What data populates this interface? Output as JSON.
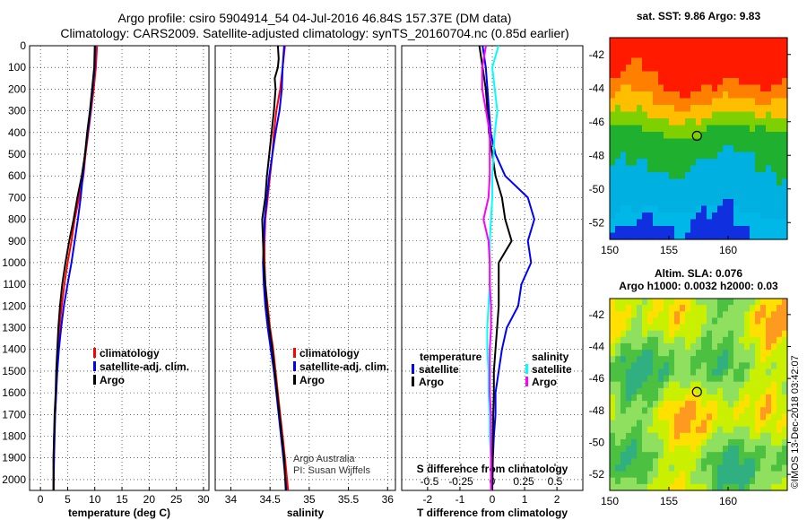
{
  "chart_data": {
    "type": "line",
    "title_line1": "Argo profile: csiro 5904914_54 04-Jul-2016 46.84S 157.37E (DM data)",
    "title_line2": "Climatology: CARS2009. Satellite-adjusted climatology: synTS_20160704.nc (0.85d earlier)",
    "depth_axis": {
      "label": "",
      "ticks": [
        0,
        100,
        200,
        300,
        400,
        500,
        600,
        700,
        800,
        900,
        1000,
        1100,
        1200,
        1300,
        1400,
        1500,
        1600,
        1700,
        1800,
        1900,
        2000
      ],
      "ylim": [
        0,
        2050
      ],
      "inverted": true
    },
    "panels": [
      {
        "name": "temperature",
        "xlabel": "temperature (deg C)",
        "xlim": [
          -2,
          31
        ],
        "xticks": [
          0,
          5,
          10,
          15,
          20,
          25,
          30
        ],
        "legend": [
          "climatology",
          "satellite-adj. clim.",
          "Argo"
        ],
        "series": [
          {
            "name": "climatology",
            "color": "#ff0000",
            "depth": [
              0,
              100,
              200,
              300,
              400,
              500,
              600,
              700,
              800,
              900,
              1000,
              1100,
              1200,
              1300,
              1400,
              1500,
              1600,
              1700,
              1800,
              1900,
              2050
            ],
            "values": [
              10.4,
              10.2,
              9.8,
              9.3,
              8.8,
              8.3,
              7.9,
              7.1,
              6.3,
              5.7,
              5.0,
              4.4,
              3.9,
              3.5,
              3.2,
              3.0,
              2.9,
              2.7,
              2.5,
              2.4,
              2.4
            ]
          },
          {
            "name": "satellite-adj. clim.",
            "color": "#0000ff",
            "depth": [
              0,
              100,
              200,
              300,
              400,
              500,
              600,
              700,
              800,
              900,
              1000,
              1100,
              1200,
              1300,
              1400,
              1500,
              1600,
              1700,
              1800,
              1900,
              2050
            ],
            "values": [
              10.1,
              10.0,
              9.6,
              9.2,
              8.7,
              8.2,
              7.8,
              7.4,
              6.9,
              6.3,
              5.7,
              5.0,
              4.3,
              3.8,
              3.4,
              3.1,
              2.9,
              2.7,
              2.6,
              2.5,
              2.4
            ]
          },
          {
            "name": "Argo",
            "color": "#000000",
            "depth": [
              0,
              100,
              200,
              300,
              400,
              500,
              600,
              700,
              800,
              900,
              1000,
              1100,
              1200,
              1300,
              1400,
              1500,
              1600,
              1700,
              1800,
              1900,
              2050
            ],
            "values": [
              10.0,
              9.9,
              9.5,
              9.1,
              8.6,
              8.2,
              7.6,
              6.8,
              6.1,
              5.3,
              4.6,
              4.0,
              3.6,
              3.3,
              3.1,
              2.9,
              2.8,
              2.6,
              2.5,
              2.4,
              2.4
            ]
          }
        ]
      },
      {
        "name": "salinity",
        "xlabel": "salinity",
        "xlim": [
          33.8,
          36.1
        ],
        "xticks": [
          34,
          34.5,
          35,
          35.5,
          36
        ],
        "legend": [
          "climatology",
          "satellite-adj. clim.",
          "Argo"
        ],
        "annotation": [
          "Argo Australia",
          "PI: Susan Wijffels"
        ],
        "series": [
          {
            "name": "climatology",
            "color": "#ff0000",
            "depth": [
              0,
              100,
              200,
              300,
              400,
              500,
              600,
              700,
              800,
              900,
              1000,
              1100,
              1200,
              1300,
              1400,
              1500,
              1600,
              1700,
              1800,
              1900,
              2050
            ],
            "values": [
              34.69,
              34.66,
              34.63,
              34.58,
              34.55,
              34.53,
              34.5,
              34.47,
              34.44,
              34.43,
              34.43,
              34.44,
              34.47,
              34.5,
              34.54,
              34.57,
              34.6,
              34.63,
              34.66,
              34.69,
              34.73
            ]
          },
          {
            "name": "satellite-adj. clim.",
            "color": "#0000ff",
            "depth": [
              0,
              100,
              200,
              300,
              400,
              500,
              600,
              700,
              800,
              900,
              1000,
              1100,
              1200,
              1300,
              1400,
              1500,
              1600,
              1700,
              1800,
              1900,
              2050
            ],
            "values": [
              34.68,
              34.66,
              34.65,
              34.62,
              34.57,
              34.53,
              34.49,
              34.46,
              34.43,
              34.42,
              34.41,
              34.42,
              34.44,
              34.47,
              34.51,
              34.55,
              34.58,
              34.61,
              34.64,
              34.67,
              34.71
            ]
          },
          {
            "name": "Argo",
            "color": "#000000",
            "depth": [
              0,
              60,
              100,
              150,
              200,
              300,
              400,
              500,
              600,
              700,
              800,
              900,
              1000,
              1100,
              1200,
              1300,
              1400,
              1500,
              1600,
              1700,
              1800,
              1900,
              2050
            ],
            "values": [
              34.6,
              34.61,
              34.6,
              34.56,
              34.57,
              34.55,
              34.52,
              34.49,
              34.46,
              34.44,
              34.4,
              34.41,
              34.42,
              34.44,
              34.46,
              34.49,
              34.53,
              34.56,
              34.59,
              34.62,
              34.65,
              34.68,
              34.7
            ]
          }
        ]
      },
      {
        "name": "differences",
        "xlabel": "T difference from climatology",
        "xlim": [
          -2.8,
          2.8
        ],
        "xticks": [
          -2,
          -1,
          0,
          1,
          2
        ],
        "xticklabels": [
          "-2",
          "-1",
          "0",
          "1",
          "2"
        ],
        "secondary_axis": {
          "label": "S difference from climatology",
          "ticks": [
            -0.5,
            -0.25,
            0,
            0.25,
            0.5
          ],
          "ticklabels": [
            "-0.5",
            "-0.25",
            "0",
            "0.25",
            "0.5"
          ]
        },
        "legend_left_title": "temperature",
        "legend_left": [
          "satellite",
          "Argo"
        ],
        "legend_right_title": "salinity",
        "legend_right": [
          "satellite",
          "Argo"
        ],
        "series": [
          {
            "name": "temperature satellite",
            "color": "#0000ff",
            "depth": [
              0,
              100,
              200,
              300,
              400,
              500,
              600,
              700,
              800,
              900,
              1000,
              1100,
              1200,
              1300,
              1400,
              1500,
              1600,
              1700,
              1800,
              1900,
              2050
            ],
            "values": [
              -0.3,
              -0.2,
              -0.15,
              -0.1,
              -0.05,
              0.1,
              0.4,
              1.1,
              1.3,
              1.1,
              1.2,
              0.9,
              0.8,
              0.45,
              0.3,
              0.2,
              0.1,
              0.1,
              0.05,
              0.02,
              0.0
            ]
          },
          {
            "name": "temperature Argo",
            "color": "#000000",
            "depth": [
              0,
              100,
              200,
              300,
              400,
              500,
              600,
              700,
              800,
              900,
              1000,
              1100,
              1200,
              1300,
              1400,
              1500,
              1600,
              1700,
              1800,
              1900,
              2050
            ],
            "values": [
              -0.4,
              -0.3,
              -0.2,
              -0.15,
              -0.1,
              0.0,
              0.1,
              0.3,
              0.4,
              0.6,
              0.2,
              0.2,
              0.2,
              0.15,
              0.1,
              0.05,
              0.05,
              0.03,
              0.02,
              0.01,
              0.0
            ]
          },
          {
            "name": "salinity satellite",
            "color": "#00ffff",
            "depth": [
              0,
              100,
              200,
              300,
              400,
              500,
              600,
              700,
              800,
              900,
              1000,
              1100,
              1200,
              1300,
              1400,
              1500,
              1600,
              1700,
              1800,
              1900,
              2050
            ],
            "values": [
              0.05,
              0.0,
              0.02,
              0.04,
              0.02,
              0.01,
              0.0,
              0.0,
              -0.01,
              -0.02,
              -0.02,
              -0.02,
              -0.03,
              -0.04,
              -0.04,
              -0.03,
              -0.03,
              -0.02,
              -0.02,
              -0.01,
              -0.01
            ]
          },
          {
            "name": "salinity Argo",
            "color": "#ff00ff",
            "depth": [
              0,
              100,
              200,
              300,
              400,
              500,
              600,
              700,
              800,
              900,
              1000,
              1100,
              1200,
              1300,
              1400,
              1500,
              1600,
              1700,
              1800,
              1900,
              2050
            ],
            "values": [
              -0.05,
              -0.08,
              -0.08,
              -0.05,
              -0.02,
              -0.02,
              -0.02,
              -0.03,
              -0.07,
              -0.03,
              -0.02,
              -0.02,
              -0.01,
              -0.01,
              -0.02,
              -0.02,
              -0.02,
              -0.01,
              -0.01,
              -0.01,
              -0.01
            ]
          }
        ]
      }
    ],
    "maps": [
      {
        "title": "sat. SST: 9.86 Argo: 9.83",
        "xticks": [
          150,
          155,
          160
        ],
        "yticks": [
          -42,
          -44,
          -46,
          -48,
          -50,
          -52
        ],
        "lon_range": [
          150,
          165
        ],
        "lat_range": [
          -53,
          -41
        ],
        "marker": {
          "lon": 157.37,
          "lat": -46.84
        }
      },
      {
        "title": "Altim. SLA: 0.076",
        "subtitle": "Argo h1000: 0.0032 h2000: 0.03",
        "xticks": [
          150,
          155,
          160
        ],
        "yticks": [
          -42,
          -44,
          -46,
          -48,
          -50,
          -52
        ],
        "lon_range": [
          150,
          165
        ],
        "lat_range": [
          -53,
          -41
        ],
        "marker": {
          "lon": 157.37,
          "lat": -46.84
        }
      }
    ],
    "credit": "©IMOS 13-Dec-2018 03:42:07"
  }
}
